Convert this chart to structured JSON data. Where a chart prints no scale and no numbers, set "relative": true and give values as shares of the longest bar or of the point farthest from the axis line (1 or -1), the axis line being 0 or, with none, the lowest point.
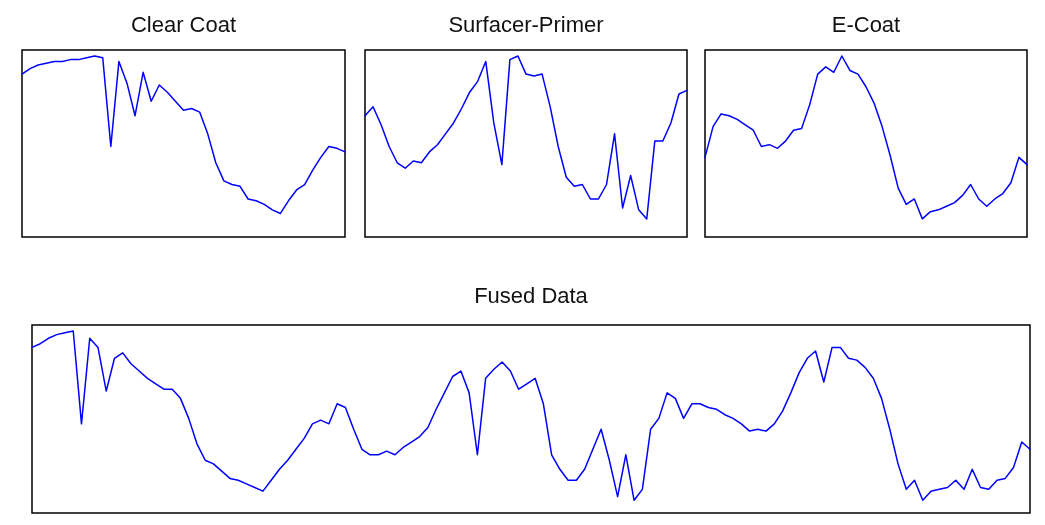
{
  "chart_data": [
    {
      "type": "line",
      "title": "Clear Coat",
      "relative": true,
      "categories": [
        null,
        null,
        null,
        null,
        null,
        null,
        null,
        null,
        null,
        null,
        null,
        null,
        null,
        null,
        null,
        null,
        null,
        null,
        null,
        null,
        null,
        null,
        null,
        null,
        null,
        null,
        null,
        null,
        null,
        null,
        null,
        null,
        null,
        null,
        null,
        null,
        null,
        null,
        null,
        null,
        null
      ],
      "series": [
        {
          "color": "#0000ff",
          "values": [
            0.9,
            0.93,
            0.95,
            0.96,
            0.97,
            0.97,
            0.98,
            0.98,
            0.99,
            1.0,
            0.99,
            0.5,
            0.97,
            0.85,
            0.67,
            0.91,
            0.75,
            0.84,
            0.8,
            0.75,
            0.7,
            0.71,
            0.69,
            0.57,
            0.41,
            0.31,
            0.29,
            0.28,
            0.21,
            0.2,
            0.18,
            0.15,
            0.13,
            0.2,
            0.26,
            0.29,
            0.37,
            0.44,
            0.5,
            0.49,
            0.47
          ]
        }
      ]
    },
    {
      "type": "line",
      "title": "Surfacer-Primer",
      "relative": true,
      "categories": [
        null,
        null,
        null,
        null,
        null,
        null,
        null,
        null,
        null,
        null,
        null,
        null,
        null,
        null,
        null,
        null,
        null,
        null,
        null,
        null,
        null,
        null,
        null,
        null,
        null,
        null,
        null,
        null,
        null,
        null,
        null,
        null,
        null,
        null,
        null,
        null,
        null,
        null,
        null,
        null,
        null
      ],
      "series": [
        {
          "color": "#0000ff",
          "values": [
            0.67,
            0.72,
            0.62,
            0.5,
            0.41,
            0.38,
            0.42,
            0.41,
            0.47,
            0.51,
            0.57,
            0.63,
            0.71,
            0.8,
            0.86,
            0.97,
            0.63,
            0.4,
            0.98,
            1.0,
            0.9,
            0.89,
            0.9,
            0.72,
            0.5,
            0.33,
            0.28,
            0.29,
            0.21,
            0.21,
            0.29,
            0.57,
            0.16,
            0.34,
            0.15,
            0.1,
            0.53,
            0.53,
            0.63,
            0.79,
            0.81
          ]
        }
      ]
    },
    {
      "type": "line",
      "title": "E-Coat",
      "relative": true,
      "categories": [
        null,
        null,
        null,
        null,
        null,
        null,
        null,
        null,
        null,
        null,
        null,
        null,
        null,
        null,
        null,
        null,
        null,
        null,
        null,
        null,
        null,
        null,
        null,
        null,
        null,
        null,
        null,
        null,
        null,
        null,
        null,
        null,
        null,
        null,
        null,
        null,
        null,
        null,
        null,
        null,
        null
      ],
      "series": [
        {
          "color": "#0000ff",
          "values": [
            0.44,
            0.61,
            0.68,
            0.67,
            0.65,
            0.62,
            0.59,
            0.5,
            0.51,
            0.49,
            0.53,
            0.59,
            0.6,
            0.73,
            0.9,
            0.94,
            0.91,
            1.0,
            0.92,
            0.9,
            0.83,
            0.74,
            0.61,
            0.45,
            0.27,
            0.18,
            0.21,
            0.1,
            0.14,
            0.15,
            0.17,
            0.19,
            0.23,
            0.29,
            0.21,
            0.17,
            0.21,
            0.24,
            0.3,
            0.44,
            0.4
          ]
        }
      ]
    },
    {
      "type": "line",
      "title": "Fused Data",
      "relative": true,
      "categories": [
        null,
        null,
        null,
        null,
        null,
        null,
        null,
        null,
        null,
        null,
        null,
        null,
        null,
        null,
        null,
        null,
        null,
        null,
        null,
        null,
        null,
        null,
        null,
        null,
        null,
        null,
        null,
        null,
        null,
        null,
        null,
        null,
        null,
        null,
        null,
        null,
        null,
        null,
        null,
        null,
        null,
        null,
        null,
        null,
        null,
        null,
        null,
        null,
        null,
        null,
        null,
        null,
        null,
        null,
        null,
        null,
        null,
        null,
        null,
        null,
        null,
        null,
        null,
        null,
        null,
        null,
        null,
        null,
        null,
        null,
        null,
        null,
        null,
        null,
        null,
        null,
        null,
        null,
        null,
        null,
        null,
        null,
        null,
        null,
        null,
        null,
        null,
        null,
        null,
        null,
        null,
        null,
        null,
        null,
        null,
        null,
        null,
        null,
        null,
        null,
        null,
        null,
        null,
        null,
        null,
        null,
        null,
        null,
        null,
        null,
        null,
        null,
        null,
        null,
        null,
        null,
        null,
        null,
        null,
        null,
        null,
        null
      ],
      "series": [
        {
          "color": "#0000ff",
          "values": [
            0.91,
            0.93,
            0.96,
            0.98,
            0.99,
            1.0,
            0.49,
            0.96,
            0.91,
            0.67,
            0.85,
            0.88,
            0.82,
            0.78,
            0.74,
            0.71,
            0.68,
            0.68,
            0.63,
            0.52,
            0.38,
            0.29,
            0.27,
            0.23,
            0.19,
            0.18,
            0.16,
            0.14,
            0.12,
            0.18,
            0.24,
            0.29,
            0.35,
            0.41,
            0.49,
            0.51,
            0.49,
            0.6,
            0.58,
            0.46,
            0.35,
            0.32,
            0.32,
            0.34,
            0.32,
            0.36,
            0.39,
            0.42,
            0.47,
            0.57,
            0.66,
            0.75,
            0.78,
            0.66,
            0.32,
            0.74,
            0.79,
            0.83,
            0.78,
            0.68,
            0.71,
            0.74,
            0.6,
            0.32,
            0.24,
            0.18,
            0.18,
            0.24,
            0.35,
            0.46,
            0.29,
            0.09,
            0.32,
            0.07,
            0.13,
            0.46,
            0.52,
            0.66,
            0.63,
            0.52,
            0.6,
            0.6,
            0.58,
            0.57,
            0.54,
            0.52,
            0.49,
            0.45,
            0.46,
            0.45,
            0.49,
            0.56,
            0.66,
            0.77,
            0.85,
            0.89,
            0.72,
            0.91,
            0.91,
            0.85,
            0.84,
            0.8,
            0.74,
            0.63,
            0.46,
            0.27,
            0.13,
            0.18,
            0.07,
            0.12,
            0.13,
            0.14,
            0.18,
            0.13,
            0.24,
            0.14,
            0.13,
            0.18,
            0.19,
            0.25,
            0.39,
            0.35
          ]
        }
      ]
    }
  ]
}
